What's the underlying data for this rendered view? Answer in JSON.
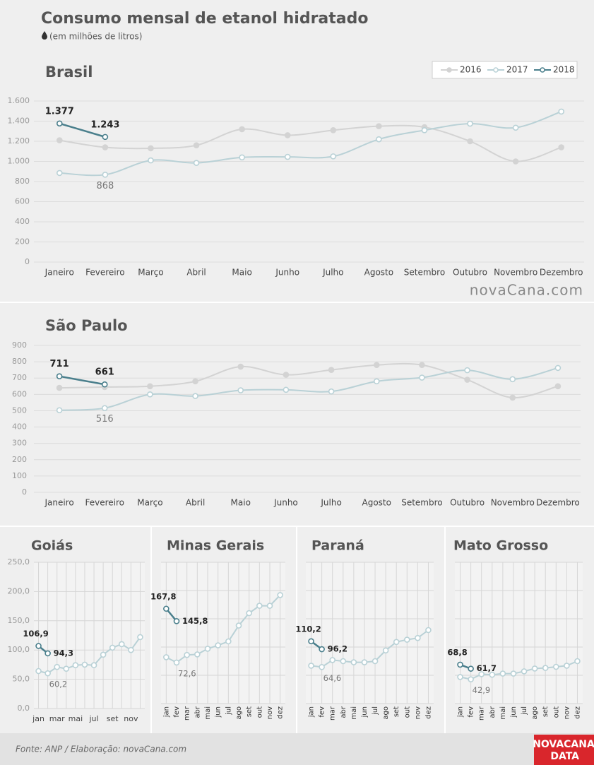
{
  "header": {
    "title": "Consumo mensal de etanol hidratado",
    "subtitle": "(em milhões de litros)"
  },
  "footer": {
    "source": "Fonte: ANP / Elaboração: novaCana.com",
    "watermark": "novaCana.com",
    "logo_top": "NOVACANA",
    "logo_bottom": "DATA"
  },
  "chart_data": [
    {
      "type": "line",
      "title": "Brasil",
      "legend": "top-right",
      "categories": [
        "Janeiro",
        "Fevereiro",
        "Março",
        "Abril",
        "Maio",
        "Junho",
        "Julho",
        "Agosto",
        "Setembro",
        "Outubro",
        "Novembro",
        "Dezembro"
      ],
      "series": [
        {
          "name": "2016",
          "color": "#d3d3d3",
          "values": [
            1210,
            1140,
            1130,
            1160,
            1320,
            1260,
            1310,
            1350,
            1340,
            1200,
            1000,
            1140
          ]
        },
        {
          "name": "2017",
          "color": "#b9d1d6",
          "values": [
            885,
            868,
            1010,
            985,
            1040,
            1045,
            1050,
            1220,
            1310,
            1375,
            1335,
            1495
          ],
          "value_labels": [
            null,
            "868",
            null,
            null,
            null,
            null,
            null,
            null,
            null,
            null,
            null,
            null
          ]
        },
        {
          "name": "2018",
          "color": "#4a7f8c",
          "values": [
            1377,
            1243,
            null,
            null,
            null,
            null,
            null,
            null,
            null,
            null,
            null,
            null
          ],
          "value_labels": [
            "1.377",
            "1.243",
            null,
            null,
            null,
            null,
            null,
            null,
            null,
            null,
            null,
            null
          ]
        }
      ],
      "ylim": [
        0,
        1600
      ],
      "yticks": [
        0,
        200,
        400,
        600,
        800,
        {
          "value": 1000,
          "label": "1.000"
        },
        {
          "value": 1200,
          "label": "1.200"
        },
        {
          "value": 1400,
          "label": "1.400"
        },
        {
          "value": 1600,
          "label": "1.600"
        }
      ],
      "grid": true
    },
    {
      "type": "line",
      "title": "São Paulo",
      "categories": [
        "Janeiro",
        "Fevereiro",
        "Março",
        "Abril",
        "Maio",
        "Junho",
        "Julho",
        "Agosto",
        "Setembro",
        "Outubro",
        "Novembro",
        "Dezembro"
      ],
      "series": [
        {
          "name": "2016",
          "color": "#d3d3d3",
          "values": [
            640,
            645,
            650,
            680,
            770,
            720,
            750,
            780,
            780,
            690,
            580,
            650
          ]
        },
        {
          "name": "2017",
          "color": "#b9d1d6",
          "values": [
            503,
            516,
            600,
            590,
            625,
            628,
            618,
            680,
            703,
            748,
            693,
            762
          ],
          "value_labels": [
            null,
            "516",
            null,
            null,
            null,
            null,
            null,
            null,
            null,
            null,
            null,
            null
          ]
        },
        {
          "name": "2018",
          "color": "#4a7f8c",
          "values": [
            711,
            661,
            null,
            null,
            null,
            null,
            null,
            null,
            null,
            null,
            null,
            null
          ]
        }
      ],
      "ylim": [
        0,
        900
      ],
      "yticks": [
        0,
        100,
        200,
        300,
        400,
        500,
        600,
        700,
        800,
        900
      ],
      "grid": true
    },
    {
      "type": "line",
      "title": "Goiás",
      "categories": [
        "jan",
        null,
        "mar",
        null,
        "mai",
        null,
        "jul",
        null,
        "set",
        null,
        "nov",
        null
      ],
      "series": [
        {
          "name": "2017",
          "color": "#b9d1d6",
          "values": [
            64,
            60.2,
            71,
            68,
            74,
            75,
            74,
            92,
            104,
            110,
            100,
            122
          ],
          "value_labels": [
            null,
            "60,2",
            null,
            null,
            null,
            null,
            null,
            null,
            null,
            null,
            null,
            null
          ]
        },
        {
          "name": "2018",
          "color": "#4a7f8c",
          "values": [
            106.9,
            94.3,
            null,
            null,
            null,
            null,
            null,
            null,
            null,
            null,
            null,
            null
          ],
          "value_labels": [
            "106,9",
            "94,3",
            null,
            null,
            null,
            null,
            null,
            null,
            null,
            null,
            null,
            null
          ]
        }
      ],
      "ylim": [
        0,
        250
      ],
      "yticks": [
        {
          "value": 0,
          "label": "0,0"
        },
        {
          "value": 50,
          "label": "50,0"
        },
        {
          "value": 100,
          "label": "100,0"
        },
        {
          "value": 150,
          "label": "150,0"
        },
        {
          "value": 200,
          "label": "200,0"
        },
        {
          "value": 250,
          "label": "250,0"
        }
      ],
      "grid": true
    },
    {
      "type": "line",
      "title": "Minas Gerais",
      "categories": [
        "jan",
        "fev",
        "mar",
        "abr",
        "mai",
        "jun",
        "jul",
        "ago",
        "set",
        "out",
        "nov",
        "dez"
      ],
      "series": [
        {
          "name": "2017",
          "color": "#b9d1d6",
          "values": [
            82,
            72.6,
            86,
            87,
            97,
            103,
            110,
            138,
            160,
            173,
            173,
            192
          ],
          "value_labels": [
            null,
            "72,6",
            null,
            null,
            null,
            null,
            null,
            null,
            null,
            null,
            null,
            null
          ]
        },
        {
          "name": "2018",
          "color": "#4a7f8c",
          "values": [
            167.8,
            145.8,
            null,
            null,
            null,
            null,
            null,
            null,
            null,
            null,
            null,
            null
          ],
          "value_labels": [
            "167,8",
            "145,8",
            null,
            null,
            null,
            null,
            null,
            null,
            null,
            null,
            null,
            null
          ]
        }
      ],
      "ylim": [
        0,
        250
      ],
      "yticks": [
        0,
        50,
        100,
        150,
        200,
        250
      ],
      "grid": true
    },
    {
      "type": "line",
      "title": "Paraná",
      "categories": [
        "jan",
        "fev",
        "mar",
        "abr",
        "mai",
        "jun",
        "jul",
        "ago",
        "set",
        "out",
        "nov",
        "dez"
      ],
      "series": [
        {
          "name": "2017",
          "color": "#b9d1d6",
          "values": [
            67,
            64.6,
            77,
            75,
            73,
            73,
            75,
            94,
            109,
            113,
            116,
            130
          ],
          "value_labels": [
            null,
            "64,6",
            null,
            null,
            null,
            null,
            null,
            null,
            null,
            null,
            null,
            null
          ]
        },
        {
          "name": "2018",
          "color": "#4a7f8c",
          "values": [
            110.2,
            96.2,
            null,
            null,
            null,
            null,
            null,
            null,
            null,
            null,
            null,
            null
          ],
          "value_labels": [
            "110,2",
            "96,2",
            null,
            null,
            null,
            null,
            null,
            null,
            null,
            null,
            null,
            null
          ]
        }
      ],
      "ylim": [
        0,
        250
      ],
      "yticks": [
        0,
        50,
        100,
        150,
        200,
        250
      ],
      "grid": true
    },
    {
      "type": "line",
      "title": "Mato Grosso",
      "categories": [
        "jan",
        "fev",
        "mar",
        "abr",
        "mai",
        "jun",
        "jul",
        "ago",
        "set",
        "out",
        "nov",
        "dez"
      ],
      "series": [
        {
          "name": "2017",
          "color": "#b9d1d6",
          "values": [
            47,
            42.9,
            52,
            51,
            53,
            53,
            57,
            62,
            63,
            65,
            67,
            75
          ],
          "value_labels": [
            null,
            "42,9",
            null,
            null,
            null,
            null,
            null,
            null,
            null,
            null,
            null,
            null
          ]
        },
        {
          "name": "2018",
          "color": "#4a7f8c",
          "values": [
            68.8,
            61.7,
            null,
            null,
            null,
            null,
            null,
            null,
            null,
            null,
            null,
            null
          ],
          "value_labels": [
            "68,8",
            "61,7",
            null,
            null,
            null,
            null,
            null,
            null,
            null,
            null,
            null,
            null
          ]
        }
      ],
      "ylim": [
        0,
        250
      ],
      "yticks": [
        0,
        50,
        100,
        150,
        200,
        250
      ],
      "grid": true
    }
  ]
}
